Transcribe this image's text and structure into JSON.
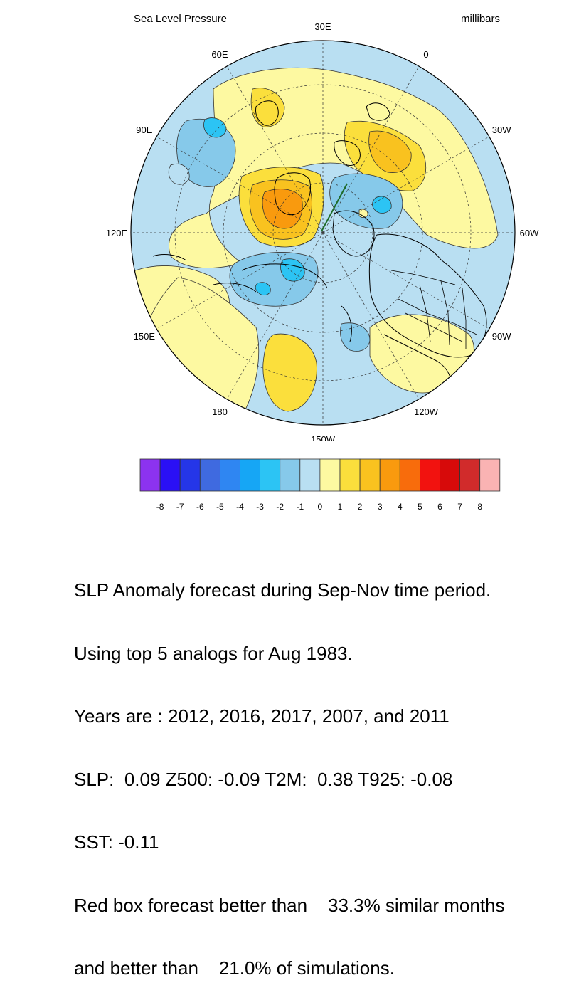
{
  "header": {
    "title": "Sea Level Pressure",
    "units": "millibars"
  },
  "map": {
    "projection": "north polar stereographic",
    "longitude_labels": [
      {
        "text": "30E",
        "lon": 30
      },
      {
        "text": "0",
        "lon": 0
      },
      {
        "text": "30W",
        "lon": -30
      },
      {
        "text": "60W",
        "lon": -60
      },
      {
        "text": "90W",
        "lon": -90
      },
      {
        "text": "120W",
        "lon": -120
      },
      {
        "text": "150W",
        "lon": -150
      },
      {
        "text": "180",
        "lon": 180
      },
      {
        "text": "150E",
        "lon": 150
      },
      {
        "text": "120E",
        "lon": 120
      },
      {
        "text": "90E",
        "lon": 90
      },
      {
        "text": "60E",
        "lon": 60
      }
    ],
    "ocean_color": "#b9dff2",
    "land_line_color": "#000000",
    "highlight_line_color": "#1e6b2a"
  },
  "colorbar": {
    "colors": [
      "#8c33f0",
      "#2a10f5",
      "#2536e8",
      "#3f6ae0",
      "#2f86f2",
      "#16a6f5",
      "#2cc4f4",
      "#86c9ea",
      "#b9dff2",
      "#fdf9a1",
      "#fbdf3c",
      "#f9c21f",
      "#f99a0e",
      "#f86c0c",
      "#f2120f",
      "#d70a0a",
      "#d12b2b",
      "#fab3b3"
    ],
    "labels": [
      "-8",
      "-7",
      "-6",
      "-5",
      "-4",
      "-3",
      "-2",
      "-1",
      "0",
      "1",
      "2",
      "3",
      "4",
      "5",
      "6",
      "7",
      "8"
    ]
  },
  "caption": {
    "lines": [
      "SLP Anomaly forecast during Sep-Nov time period.",
      "Using top 5 analogs for Aug 1983.",
      "Years are : 2012, 2016, 2017, 2007, and 2011",
      "SLP:  0.09 Z500: -0.09 T2M:  0.38 T925: -0.08",
      "SST: -0.11",
      "Red box forecast better than    33.3% similar months",
      "and better than    21.0% of simulations."
    ]
  }
}
